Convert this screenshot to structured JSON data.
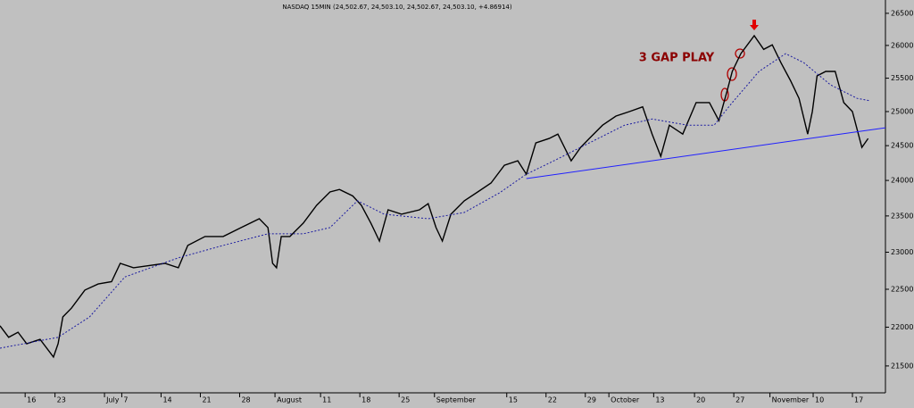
{
  "chart_data": {
    "type": "line",
    "title": "NASDAQ 15MIN (24,502.67, 24,503.10, 24,502.67, 24,503.10, +4.86914)",
    "annotation": "3 GAP PLAY",
    "log_y": true,
    "background": "#c0c0c0",
    "xlim": [
      0,
      112.7
    ],
    "ylim": [
      21160,
      26710
    ],
    "yticks": [
      21500,
      22000,
      22500,
      23000,
      23500,
      24000,
      24500,
      25000,
      25500,
      26000,
      26500
    ],
    "xticks": [
      {
        "value": 3.2,
        "label": "16"
      },
      {
        "value": 7.0,
        "label": "23"
      },
      {
        "value": 13.3,
        "label": "July"
      },
      {
        "value": 15.5,
        "label": "7"
      },
      {
        "value": 20.5,
        "label": "14"
      },
      {
        "value": 25.5,
        "label": "21"
      },
      {
        "value": 30.5,
        "label": "28"
      },
      {
        "value": 35.0,
        "label": "August"
      },
      {
        "value": 40.8,
        "label": "11"
      },
      {
        "value": 45.8,
        "label": "18"
      },
      {
        "value": 50.8,
        "label": "25"
      },
      {
        "value": 55.3,
        "label": "September"
      },
      {
        "value": 64.5,
        "label": "15"
      },
      {
        "value": 69.5,
        "label": "22"
      },
      {
        "value": 74.5,
        "label": "29"
      },
      {
        "value": 77.5,
        "label": "October"
      },
      {
        "value": 83.2,
        "label": "13"
      },
      {
        "value": 88.4,
        "label": "20"
      },
      {
        "value": 93.4,
        "label": "27"
      },
      {
        "value": 98.0,
        "label": "November"
      },
      {
        "value": 103.5,
        "label": "10"
      },
      {
        "value": 108.5,
        "label": "17"
      }
    ],
    "series": [
      {
        "color": "#000000",
        "style": "solid",
        "x": [
          0,
          1.1,
          2.3,
          3.4,
          5.1,
          6.8,
          7.4,
          8.0,
          9.1,
          10.8,
          12.5,
          14.2,
          15.3,
          17.0,
          18.8,
          21.0,
          22.7,
          23.9,
          26.1,
          28.4,
          30.7,
          33.0,
          34.1,
          34.7,
          35.2,
          35.8,
          36.9,
          38.6,
          40.3,
          42.0,
          43.2,
          44.9,
          46.0,
          47.2,
          48.3,
          49.4,
          51.1,
          53.4,
          54.5,
          55.5,
          56.3,
          57.4,
          59.1,
          60.8,
          62.5,
          64.2,
          65.9,
          67.0,
          68.2,
          69.9,
          71.0,
          72.7,
          73.9,
          75.0,
          76.7,
          78.4,
          80.1,
          81.8,
          83.0,
          84.1,
          85.2,
          86.9,
          88.6,
          90.3,
          91.5,
          92.6,
          93.2,
          94.3,
          96.0,
          97.2,
          98.3,
          99.4,
          100.6,
          101.7,
          102.8,
          103.4,
          104.0,
          105.1,
          106.3,
          107.4,
          108.5,
          109.7,
          110.5
        ],
        "values": [
          22018,
          21868,
          21935,
          21785,
          21842,
          21614,
          21785,
          22134,
          22250,
          22489,
          22571,
          22601,
          22848,
          22789,
          22816,
          22848,
          22789,
          23092,
          23215,
          23215,
          23338,
          23461,
          23338,
          22848,
          22789,
          23215,
          23215,
          23400,
          23648,
          23837,
          23872,
          23780,
          23648,
          23400,
          23153,
          23585,
          23524,
          23585,
          23672,
          23338,
          23153,
          23524,
          23712,
          23837,
          23963,
          24217,
          24281,
          24089,
          24540,
          24605,
          24668,
          24281,
          24475,
          24605,
          24800,
          24934,
          25000,
          25070,
          24668,
          24345,
          24800,
          24668,
          25134,
          25134,
          24866,
          25331,
          25602,
          25873,
          26151,
          25940,
          26010,
          25736,
          25467,
          25197,
          24668,
          25000,
          25535,
          25602,
          25602,
          25134,
          25000,
          24475,
          24605
        ]
      },
      {
        "color": "#1a1aa0",
        "style": "dotted",
        "x": [
          0,
          7.4,
          11.4,
          15.9,
          22.7,
          28.4,
          34.1,
          36.4,
          38.6,
          42.0,
          45.5,
          48.9,
          54.5,
          59.1,
          63.6,
          67.0,
          70.5,
          75.0,
          79.5,
          83.0,
          87.5,
          90.9,
          93.2,
          96.6,
          100.0,
          102.3,
          105.7,
          109.1,
          110.8
        ],
        "values": [
          21728,
          21868,
          22134,
          22665,
          22923,
          23092,
          23252,
          23252,
          23252,
          23338,
          23712,
          23524,
          23461,
          23548,
          23825,
          24089,
          24281,
          24540,
          24800,
          24890,
          24800,
          24800,
          25134,
          25602,
          25873,
          25736,
          25400,
          25197,
          25159
        ]
      },
      {
        "color": "#2020ff",
        "style": "solid",
        "x": [
          67.0,
          112.7
        ],
        "values": [
          24026,
          24761
        ]
      }
    ]
  }
}
